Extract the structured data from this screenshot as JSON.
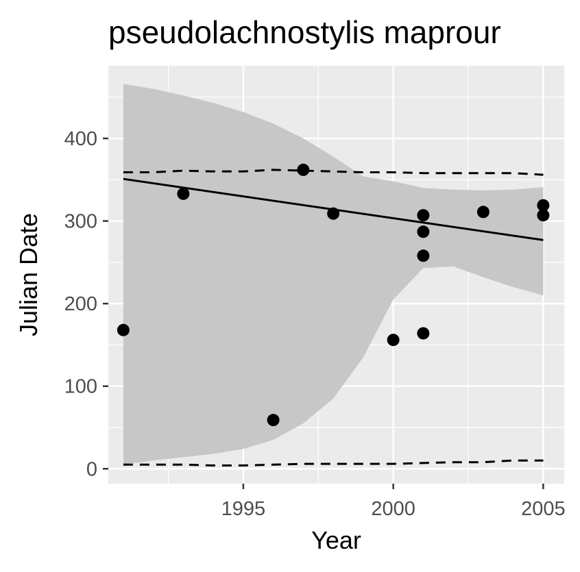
{
  "chart_data": {
    "type": "scatter",
    "title": "pseudolachnostylis maprour",
    "xlabel": "Year",
    "ylabel": "Julian Date",
    "xlim": [
      1990.5,
      2005.7
    ],
    "ylim": [
      -18,
      488
    ],
    "x_ticks": [
      1995,
      2000,
      2005
    ],
    "x_minor_ticks": [
      1992.5,
      1997.5,
      2002.5
    ],
    "y_ticks": [
      0,
      100,
      200,
      300,
      400
    ],
    "y_minor_ticks": [
      50,
      150,
      250,
      350,
      450
    ],
    "grid": true,
    "points": [
      {
        "x": 1991,
        "y": 168
      },
      {
        "x": 1993,
        "y": 333
      },
      {
        "x": 1996,
        "y": 59
      },
      {
        "x": 1997,
        "y": 362
      },
      {
        "x": 1998,
        "y": 309
      },
      {
        "x": 2000,
        "y": 156
      },
      {
        "x": 2001,
        "y": 307
      },
      {
        "x": 2001,
        "y": 287
      },
      {
        "x": 2001,
        "y": 258
      },
      {
        "x": 2001,
        "y": 164
      },
      {
        "x": 2003,
        "y": 311
      },
      {
        "x": 2005,
        "y": 319
      },
      {
        "x": 2005,
        "y": 307
      }
    ],
    "fit_line": {
      "x": [
        1991,
        2005
      ],
      "y": [
        351,
        277
      ]
    },
    "confidence_band": {
      "x": [
        1991,
        1992,
        1993,
        1994,
        1995,
        1996,
        1997,
        1998,
        1999,
        2000,
        2001,
        2002,
        2003,
        2004,
        2005
      ],
      "upper": [
        466,
        460,
        452,
        443,
        432,
        418,
        400,
        378,
        354,
        348,
        340,
        338,
        337,
        338,
        341
      ],
      "lower": [
        5,
        10,
        14,
        18,
        24,
        35,
        55,
        85,
        135,
        205,
        243,
        245,
        232,
        220,
        210
      ]
    },
    "upper_dashed": {
      "x": [
        1991,
        1992,
        1993,
        1994,
        1995,
        1996,
        1997,
        1998,
        1999,
        2000,
        2001,
        2002,
        2003,
        2004,
        2005
      ],
      "y": [
        359,
        359,
        361,
        360,
        360,
        362,
        361,
        360,
        359,
        359,
        358,
        358,
        358,
        358,
        356
      ]
    },
    "lower_dashed": {
      "x": [
        1991,
        1992,
        1993,
        1994,
        1995,
        1996,
        1997,
        1998,
        1999,
        2000,
        2001,
        2002,
        2003,
        2004,
        2005
      ],
      "y": [
        5,
        5,
        5,
        4,
        4,
        5,
        6,
        6,
        6,
        6,
        7,
        8,
        8,
        10,
        10
      ]
    },
    "colors": {
      "panel_background": "#ebebeb",
      "grid": "#ffffff",
      "band": "#c7c7c7",
      "points": "#000000",
      "lines": "#000000",
      "tick_text": "#4d4d4d",
      "axis_ticks": "#333333"
    }
  }
}
